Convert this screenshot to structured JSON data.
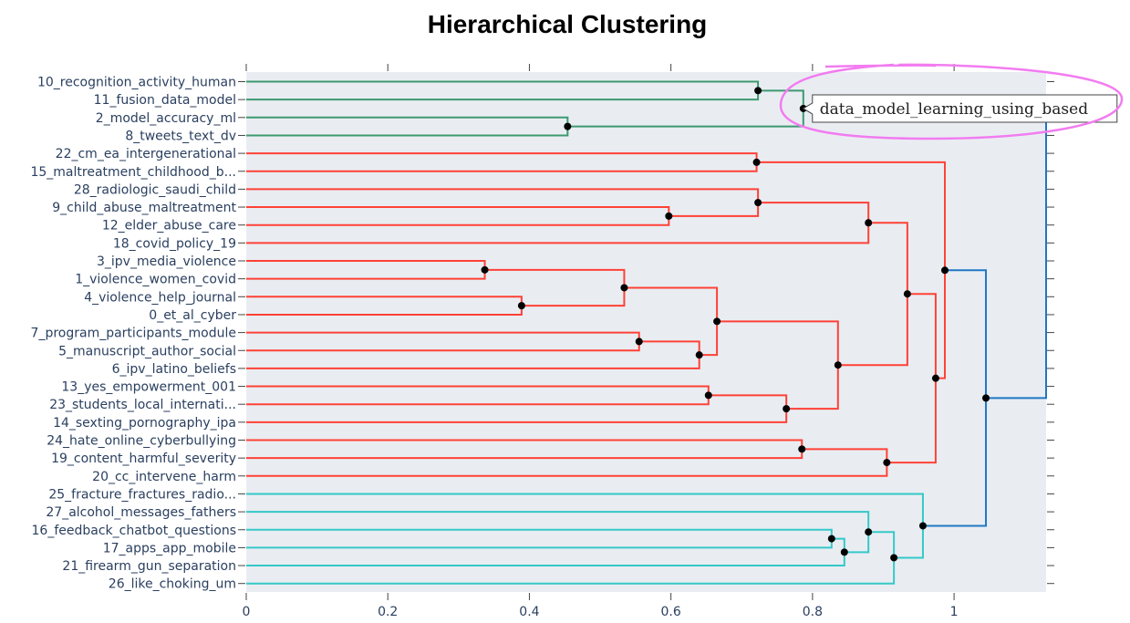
{
  "chart_data": {
    "type": "dendrogram",
    "title": "Hierarchical Clustering",
    "xlim": [
      0,
      1.13
    ],
    "xticks": [
      0,
      0.2,
      0.4,
      0.6,
      0.8,
      1
    ],
    "xtick_labels": [
      "0",
      "0.2",
      "0.4",
      "0.6",
      "0.8",
      "1"
    ],
    "leaves": [
      "10_recognition_activity_human",
      "11_fusion_data_model",
      "2_model_accuracy_ml",
      "8_tweets_text_dv",
      "22_cm_ea_intergenerational",
      "15_maltreatment_childhood_b...",
      "28_radiologic_saudi_child",
      "9_child_abuse_maltreatment",
      "12_elder_abuse_care",
      "18_covid_policy_19",
      "3_ipv_media_violence",
      "1_violence_women_covid",
      "4_violence_help_journal",
      "0_et_al_cyber",
      "7_program_participants_module",
      "5_manuscript_author_social",
      "6_ipv_latino_beliefs",
      "13_yes_empowerment_001",
      "23_students_local_internati...",
      "14_sexting_pornography_ipa",
      "24_hate_online_cyberbullying",
      "19_content_harmful_severity",
      "20_cc_intervene_harm",
      "25_fracture_fractures_radio...",
      "27_alcohol_messages_fathers",
      "16_feedback_chatbot_questions",
      "17_apps_app_mobile",
      "21_firearm_gun_separation",
      "26_like_choking_um"
    ],
    "colors": {
      "green": "#3d9970",
      "red": "#ff4136",
      "cyan": "#35c8c8",
      "blue": "#1f77c4"
    },
    "merges": [
      {
        "id": "g1",
        "left": "L0",
        "right": "L1",
        "height": 0.723,
        "color": "green"
      },
      {
        "id": "g2",
        "left": "L2",
        "right": "L3",
        "height": 0.454,
        "color": "green"
      },
      {
        "id": "G",
        "left": "g1",
        "right": "g2",
        "height": 0.787,
        "color": "green"
      },
      {
        "id": "r1",
        "left": "L4",
        "right": "L5",
        "height": 0.721,
        "color": "red"
      },
      {
        "id": "r2",
        "left": "L7",
        "right": "L8",
        "height": 0.597,
        "color": "red"
      },
      {
        "id": "r3",
        "left": "L6",
        "right": "r2",
        "height": 0.723,
        "color": "red"
      },
      {
        "id": "r4",
        "left": "r3",
        "right": "L9",
        "height": 0.879,
        "color": "red"
      },
      {
        "id": "r5",
        "left": "L10",
        "right": "L11",
        "height": 0.337,
        "color": "red"
      },
      {
        "id": "r6",
        "left": "L12",
        "right": "L13",
        "height": 0.389,
        "color": "red"
      },
      {
        "id": "r7",
        "left": "r5",
        "right": "r6",
        "height": 0.534,
        "color": "red"
      },
      {
        "id": "r8",
        "left": "L14",
        "right": "L15",
        "height": 0.555,
        "color": "red"
      },
      {
        "id": "r9",
        "left": "r8",
        "right": "L16",
        "height": 0.64,
        "color": "red"
      },
      {
        "id": "r10",
        "left": "r7",
        "right": "r9",
        "height": 0.665,
        "color": "red"
      },
      {
        "id": "r11",
        "left": "L17",
        "right": "L18",
        "height": 0.653,
        "color": "red"
      },
      {
        "id": "r12",
        "left": "r11",
        "right": "L19",
        "height": 0.763,
        "color": "red"
      },
      {
        "id": "r13",
        "left": "r10",
        "right": "r12",
        "height": 0.836,
        "color": "red"
      },
      {
        "id": "r14",
        "left": "r4",
        "right": "r13",
        "height": 0.934,
        "color": "red"
      },
      {
        "id": "r15",
        "left": "L20",
        "right": "L21",
        "height": 0.785,
        "color": "red"
      },
      {
        "id": "r16",
        "left": "r15",
        "right": "L22",
        "height": 0.905,
        "color": "red"
      },
      {
        "id": "r17",
        "left": "r14",
        "right": "r16",
        "height": 0.974,
        "color": "red"
      },
      {
        "id": "r18",
        "left": "r1",
        "right": "r17",
        "height": 0.987,
        "color": "red"
      },
      {
        "id": "c1",
        "left": "L25",
        "right": "L26",
        "height": 0.827,
        "color": "cyan"
      },
      {
        "id": "c2",
        "left": "c1",
        "right": "L27",
        "height": 0.845,
        "color": "cyan"
      },
      {
        "id": "c3",
        "left": "L24",
        "right": "c2",
        "height": 0.879,
        "color": "cyan"
      },
      {
        "id": "c4",
        "left": "c3",
        "right": "L28",
        "height": 0.915,
        "color": "cyan"
      },
      {
        "id": "c5",
        "left": "L23",
        "right": "c4",
        "height": 0.956,
        "color": "cyan"
      },
      {
        "id": "b1",
        "left": "r18",
        "right": "c5",
        "height": 1.045,
        "color": "blue"
      },
      {
        "id": "root",
        "left": "G",
        "right": "b1",
        "height": 1.13,
        "color": "blue"
      }
    ],
    "tooltip": {
      "node": "G",
      "text": "data_model_learning_using_based"
    }
  }
}
